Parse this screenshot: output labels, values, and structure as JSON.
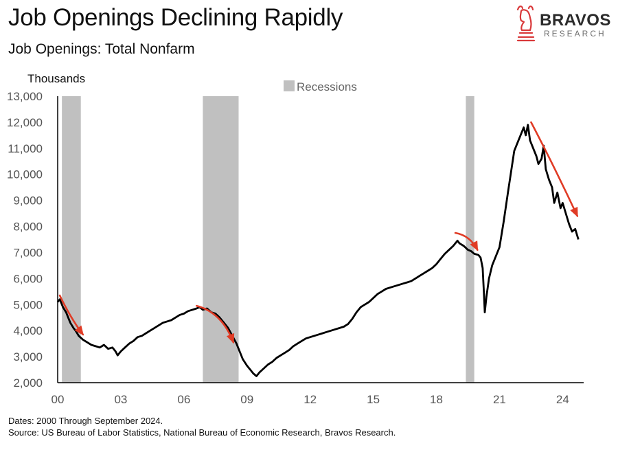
{
  "title": "Job Openings Declining Rapidly",
  "subtitle": "Job Openings: Total Nonfarm",
  "brand": {
    "name": "BRAVOS",
    "sub": "RESEARCH",
    "accent": "#d9393a"
  },
  "notes": {
    "dates": "Dates: 2000 Through September 2024.",
    "source": "Source: US Bureau of Labor Statistics, National Bureau of Economic Research, Bravos Research."
  },
  "chart_data": {
    "type": "line",
    "ylabel": "Thousands",
    "ylim": [
      2000,
      13000
    ],
    "yticks": [
      2000,
      3000,
      4000,
      5000,
      6000,
      7000,
      8000,
      9000,
      10000,
      11000,
      12000,
      13000
    ],
    "ytick_labels": [
      "2,000",
      "3,000",
      "4,000",
      "5,000",
      "6,000",
      "7,000",
      "8,000",
      "9,000",
      "10,000",
      "11,000",
      "12,000",
      "13,000"
    ],
    "xlim": [
      2000.0,
      2025.0
    ],
    "xticks": [
      2000,
      2003,
      2006,
      2009,
      2012,
      2015,
      2018,
      2021,
      2024
    ],
    "xtick_labels": [
      "00",
      "03",
      "06",
      "09",
      "12",
      "15",
      "18",
      "21",
      "24"
    ],
    "grid": false,
    "legend": {
      "position": "top-center",
      "entries": [
        {
          "label": "Recessions",
          "color": "#c0c0c0"
        }
      ]
    },
    "recessions": [
      [
        2000.2,
        2001.1
      ],
      [
        2006.9,
        2008.6
      ],
      [
        2019.4,
        2019.8
      ]
    ],
    "line_color": "#000000",
    "series": [
      {
        "values": [
          [
            2000.0,
            5100
          ],
          [
            2000.1,
            5200
          ],
          [
            2000.25,
            4900
          ],
          [
            2000.4,
            4700
          ],
          [
            2000.5,
            4500
          ],
          [
            2000.6,
            4300
          ],
          [
            2000.75,
            4100
          ],
          [
            2000.85,
            4000
          ],
          [
            2001.0,
            3800
          ],
          [
            2001.2,
            3650
          ],
          [
            2001.4,
            3550
          ],
          [
            2001.6,
            3450
          ],
          [
            2001.8,
            3400
          ],
          [
            2002.0,
            3350
          ],
          [
            2002.2,
            3450
          ],
          [
            2002.4,
            3300
          ],
          [
            2002.6,
            3350
          ],
          [
            2002.75,
            3200
          ],
          [
            2002.85,
            3050
          ],
          [
            2003.0,
            3200
          ],
          [
            2003.2,
            3350
          ],
          [
            2003.4,
            3500
          ],
          [
            2003.6,
            3600
          ],
          [
            2003.8,
            3750
          ],
          [
            2004.0,
            3800
          ],
          [
            2004.2,
            3900
          ],
          [
            2004.4,
            4000
          ],
          [
            2004.6,
            4100
          ],
          [
            2004.8,
            4200
          ],
          [
            2005.0,
            4300
          ],
          [
            2005.2,
            4350
          ],
          [
            2005.4,
            4400
          ],
          [
            2005.6,
            4500
          ],
          [
            2005.8,
            4600
          ],
          [
            2006.0,
            4650
          ],
          [
            2006.2,
            4750
          ],
          [
            2006.4,
            4800
          ],
          [
            2006.6,
            4850
          ],
          [
            2006.75,
            4900
          ],
          [
            2006.9,
            4800
          ],
          [
            2007.1,
            4850
          ],
          [
            2007.3,
            4700
          ],
          [
            2007.5,
            4650
          ],
          [
            2007.7,
            4500
          ],
          [
            2007.9,
            4300
          ],
          [
            2008.1,
            4100
          ],
          [
            2008.3,
            3800
          ],
          [
            2008.5,
            3500
          ],
          [
            2008.65,
            3200
          ],
          [
            2008.8,
            2900
          ],
          [
            2009.0,
            2650
          ],
          [
            2009.15,
            2500
          ],
          [
            2009.3,
            2350
          ],
          [
            2009.45,
            2250
          ],
          [
            2009.6,
            2400
          ],
          [
            2009.8,
            2550
          ],
          [
            2010.0,
            2700
          ],
          [
            2010.2,
            2800
          ],
          [
            2010.4,
            2950
          ],
          [
            2010.6,
            3050
          ],
          [
            2010.8,
            3150
          ],
          [
            2011.0,
            3250
          ],
          [
            2011.2,
            3400
          ],
          [
            2011.4,
            3500
          ],
          [
            2011.6,
            3600
          ],
          [
            2011.8,
            3700
          ],
          [
            2012.0,
            3750
          ],
          [
            2012.2,
            3800
          ],
          [
            2012.4,
            3850
          ],
          [
            2012.6,
            3900
          ],
          [
            2012.8,
            3950
          ],
          [
            2013.0,
            4000
          ],
          [
            2013.2,
            4050
          ],
          [
            2013.4,
            4100
          ],
          [
            2013.6,
            4150
          ],
          [
            2013.8,
            4250
          ],
          [
            2014.0,
            4450
          ],
          [
            2014.2,
            4700
          ],
          [
            2014.4,
            4900
          ],
          [
            2014.6,
            5000
          ],
          [
            2014.8,
            5100
          ],
          [
            2015.0,
            5250
          ],
          [
            2015.2,
            5400
          ],
          [
            2015.4,
            5500
          ],
          [
            2015.6,
            5600
          ],
          [
            2015.8,
            5650
          ],
          [
            2016.0,
            5700
          ],
          [
            2016.2,
            5750
          ],
          [
            2016.4,
            5800
          ],
          [
            2016.6,
            5850
          ],
          [
            2016.8,
            5900
          ],
          [
            2017.0,
            6000
          ],
          [
            2017.2,
            6100
          ],
          [
            2017.4,
            6200
          ],
          [
            2017.6,
            6300
          ],
          [
            2017.8,
            6400
          ],
          [
            2018.0,
            6550
          ],
          [
            2018.2,
            6750
          ],
          [
            2018.4,
            6950
          ],
          [
            2018.6,
            7100
          ],
          [
            2018.8,
            7250
          ],
          [
            2019.0,
            7450
          ],
          [
            2019.1,
            7350
          ],
          [
            2019.3,
            7250
          ],
          [
            2019.5,
            7100
          ],
          [
            2019.65,
            7050
          ],
          [
            2019.8,
            6950
          ],
          [
            2020.0,
            6900
          ],
          [
            2020.1,
            6800
          ],
          [
            2020.2,
            6400
          ],
          [
            2020.26,
            5400
          ],
          [
            2020.3,
            4700
          ],
          [
            2020.38,
            5300
          ],
          [
            2020.5,
            6000
          ],
          [
            2020.65,
            6500
          ],
          [
            2020.8,
            6800
          ],
          [
            2021.0,
            7200
          ],
          [
            2021.2,
            8200
          ],
          [
            2021.4,
            9300
          ],
          [
            2021.55,
            10100
          ],
          [
            2021.7,
            10900
          ],
          [
            2021.85,
            11200
          ],
          [
            2022.0,
            11500
          ],
          [
            2022.15,
            11800
          ],
          [
            2022.25,
            11500
          ],
          [
            2022.35,
            11900
          ],
          [
            2022.45,
            11300
          ],
          [
            2022.6,
            11000
          ],
          [
            2022.75,
            10700
          ],
          [
            2022.85,
            10400
          ],
          [
            2023.0,
            10600
          ],
          [
            2023.1,
            11100
          ],
          [
            2023.2,
            10200
          ],
          [
            2023.35,
            9800
          ],
          [
            2023.5,
            9500
          ],
          [
            2023.6,
            8900
          ],
          [
            2023.75,
            9300
          ],
          [
            2023.9,
            8700
          ],
          [
            2024.0,
            8900
          ],
          [
            2024.15,
            8500
          ],
          [
            2024.3,
            8100
          ],
          [
            2024.45,
            7800
          ],
          [
            2024.6,
            7900
          ],
          [
            2024.75,
            7500
          ]
        ]
      }
    ],
    "arrows": [
      {
        "from": [
          2000.1,
          5350
        ],
        "ctrl": [
          2000.6,
          4500
        ],
        "to": [
          2001.2,
          3850
        ]
      },
      {
        "from": [
          2006.6,
          4950
        ],
        "ctrl": [
          2007.8,
          4700
        ],
        "to": [
          2008.35,
          3550
        ]
      },
      {
        "from": [
          2018.9,
          7750
        ],
        "ctrl": [
          2019.6,
          7650
        ],
        "to": [
          2019.95,
          7100
        ]
      },
      {
        "from": [
          2022.5,
          12000
        ],
        "ctrl": [
          2023.6,
          10300
        ],
        "to": [
          2024.7,
          8400
        ]
      }
    ],
    "arrow_color": "#e03b25"
  }
}
